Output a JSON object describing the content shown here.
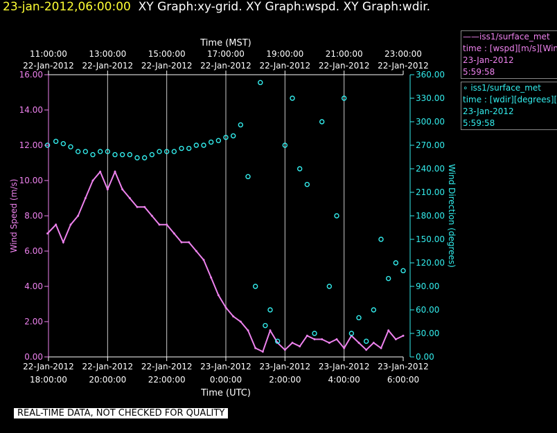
{
  "header": {
    "timestamp": "23-jan-2012,06:00:00",
    "graphs": "XY Graph:xy-grid.  XY Graph:wspd.  XY Graph:wdir."
  },
  "legend": {
    "wspd": {
      "line1": "——iss1/surface_met",
      "line2": "time : [wspd][m/s][Wind",
      "line3": "23-Jan-2012",
      "line4": "5:59:58"
    },
    "wdir": {
      "line1": "∘ iss1/surface_met",
      "line2": "time : [wdir][degrees][W",
      "line3": "23-Jan-2012",
      "line4": "5:59:58"
    }
  },
  "disclaimer": "REAL-TIME DATA, NOT CHECKED FOR QUALITY",
  "chart_data": {
    "type": "line",
    "colors": {
      "wspd": "#ee82ee",
      "wdir": "#33eeee",
      "axes": "#ffffff",
      "grid": "#ffffff"
    },
    "top_axis": {
      "label": "Time (MST)",
      "ticks": [
        {
          "t": "11:00:00",
          "d": "22-Jan-2012"
        },
        {
          "t": "13:00:00",
          "d": "22-Jan-2012"
        },
        {
          "t": "15:00:00",
          "d": "22-Jan-2012"
        },
        {
          "t": "17:00:00",
          "d": "22-Jan-2012"
        },
        {
          "t": "19:00:00",
          "d": "22-Jan-2012"
        },
        {
          "t": "21:00:00",
          "d": "22-Jan-2012"
        },
        {
          "t": "23:00:00",
          "d": "22-Jan-2012"
        }
      ]
    },
    "bottom_axis": {
      "label": "Time (UTC)",
      "ticks": [
        {
          "d": "22-Jan-2012",
          "t": "18:00:00"
        },
        {
          "d": "22-Jan-2012",
          "t": "20:00:00"
        },
        {
          "d": "22-Jan-2012",
          "t": "22:00:00"
        },
        {
          "d": "23-Jan-2012",
          "t": "0:00:00"
        },
        {
          "d": "23-Jan-2012",
          "t": "2:00:00"
        },
        {
          "d": "23-Jan-2012",
          "t": "4:00:00"
        },
        {
          "d": "23-Jan-2012",
          "t": "6:00:00"
        }
      ]
    },
    "xlim_utc": [
      "2012-01-22 18:00",
      "2012-01-23 06:00"
    ],
    "left_axis": {
      "label": "Wind Speed (m/s)",
      "ylim": [
        0,
        16
      ],
      "ticks": [
        "0.00",
        "2.00",
        "4.00",
        "6.00",
        "8.00",
        "10.00",
        "12.00",
        "14.00",
        "16.00"
      ]
    },
    "right_axis": {
      "label": "Wind Direction (degrees)",
      "ylim": [
        0,
        360
      ],
      "ticks": [
        "0.00",
        "30.00",
        "60.00",
        "90.00",
        "120.00",
        "150.00",
        "180.00",
        "210.00",
        "240.00",
        "270.00",
        "300.00",
        "330.00",
        "360.00"
      ]
    },
    "grid": "vertical",
    "series": [
      {
        "name": "iss1/surface_met wspd",
        "type": "line",
        "axis": "left",
        "points": [
          [
            "2012-01-22 17:58",
            7.0
          ],
          [
            "2012-01-22 18:15",
            7.5
          ],
          [
            "2012-01-22 18:30",
            6.5
          ],
          [
            "2012-01-22 18:45",
            7.5
          ],
          [
            "2012-01-22 19:00",
            8.0
          ],
          [
            "2012-01-22 19:15",
            9.0
          ],
          [
            "2012-01-22 19:30",
            10.0
          ],
          [
            "2012-01-22 19:45",
            10.5
          ],
          [
            "2012-01-22 20:00",
            9.5
          ],
          [
            "2012-01-22 20:15",
            10.5
          ],
          [
            "2012-01-22 20:30",
            9.5
          ],
          [
            "2012-01-22 20:45",
            9.0
          ],
          [
            "2012-01-22 21:00",
            8.5
          ],
          [
            "2012-01-22 21:15",
            8.5
          ],
          [
            "2012-01-22 21:30",
            8.0
          ],
          [
            "2012-01-22 21:45",
            7.5
          ],
          [
            "2012-01-22 22:00",
            7.5
          ],
          [
            "2012-01-22 22:15",
            7.0
          ],
          [
            "2012-01-22 22:30",
            6.5
          ],
          [
            "2012-01-22 22:45",
            6.5
          ],
          [
            "2012-01-22 23:00",
            6.0
          ],
          [
            "2012-01-22 23:15",
            5.5
          ],
          [
            "2012-01-22 23:30",
            4.5
          ],
          [
            "2012-01-22 23:45",
            3.5
          ],
          [
            "2012-01-23 00:00",
            2.8
          ],
          [
            "2012-01-23 00:15",
            2.3
          ],
          [
            "2012-01-23 00:30",
            2.0
          ],
          [
            "2012-01-23 00:45",
            1.5
          ],
          [
            "2012-01-23 01:00",
            0.5
          ],
          [
            "2012-01-23 01:15",
            0.3
          ],
          [
            "2012-01-23 01:30",
            1.5
          ],
          [
            "2012-01-23 01:45",
            0.8
          ],
          [
            "2012-01-23 02:00",
            0.4
          ],
          [
            "2012-01-23 02:15",
            0.8
          ],
          [
            "2012-01-23 02:30",
            0.6
          ],
          [
            "2012-01-23 02:45",
            1.2
          ],
          [
            "2012-01-23 03:00",
            1.0
          ],
          [
            "2012-01-23 03:15",
            1.0
          ],
          [
            "2012-01-23 03:30",
            0.8
          ],
          [
            "2012-01-23 03:45",
            1.0
          ],
          [
            "2012-01-23 04:00",
            0.5
          ],
          [
            "2012-01-23 04:15",
            1.2
          ],
          [
            "2012-01-23 04:30",
            0.8
          ],
          [
            "2012-01-23 04:45",
            0.4
          ],
          [
            "2012-01-23 05:00",
            0.8
          ],
          [
            "2012-01-23 05:15",
            0.5
          ],
          [
            "2012-01-23 05:30",
            1.5
          ],
          [
            "2012-01-23 05:45",
            1.0
          ],
          [
            "2012-01-23 06:00",
            1.2
          ]
        ]
      },
      {
        "name": "iss1/surface_met wdir",
        "type": "scatter",
        "axis": "right",
        "points": [
          [
            "2012-01-22 17:58",
            270
          ],
          [
            "2012-01-22 18:15",
            275
          ],
          [
            "2012-01-22 18:30",
            272
          ],
          [
            "2012-01-22 18:45",
            268
          ],
          [
            "2012-01-22 19:00",
            262
          ],
          [
            "2012-01-22 19:15",
            262
          ],
          [
            "2012-01-22 19:30",
            258
          ],
          [
            "2012-01-22 19:45",
            262
          ],
          [
            "2012-01-22 20:00",
            262
          ],
          [
            "2012-01-22 20:15",
            258
          ],
          [
            "2012-01-22 20:30",
            258
          ],
          [
            "2012-01-22 20:45",
            258
          ],
          [
            "2012-01-22 21:00",
            254
          ],
          [
            "2012-01-22 21:15",
            254
          ],
          [
            "2012-01-22 21:30",
            258
          ],
          [
            "2012-01-22 21:45",
            262
          ],
          [
            "2012-01-22 22:00",
            262
          ],
          [
            "2012-01-22 22:15",
            262
          ],
          [
            "2012-01-22 22:30",
            266
          ],
          [
            "2012-01-22 22:45",
            266
          ],
          [
            "2012-01-22 23:00",
            270
          ],
          [
            "2012-01-22 23:15",
            270
          ],
          [
            "2012-01-22 23:30",
            274
          ],
          [
            "2012-01-22 23:45",
            276
          ],
          [
            "2012-01-23 00:00",
            280
          ],
          [
            "2012-01-23 00:15",
            282
          ],
          [
            "2012-01-23 00:30",
            296
          ],
          [
            "2012-01-23 00:45",
            230
          ],
          [
            "2012-01-23 01:00",
            90
          ],
          [
            "2012-01-23 01:10",
            350
          ],
          [
            "2012-01-23 01:20",
            40
          ],
          [
            "2012-01-23 01:30",
            60
          ],
          [
            "2012-01-23 01:45",
            20
          ],
          [
            "2012-01-23 02:00",
            270
          ],
          [
            "2012-01-23 02:15",
            330
          ],
          [
            "2012-01-23 02:30",
            240
          ],
          [
            "2012-01-23 02:45",
            220
          ],
          [
            "2012-01-23 03:00",
            30
          ],
          [
            "2012-01-23 03:15",
            300
          ],
          [
            "2012-01-23 03:30",
            90
          ],
          [
            "2012-01-23 03:45",
            180
          ],
          [
            "2012-01-23 04:00",
            330
          ],
          [
            "2012-01-23 04:15",
            30
          ],
          [
            "2012-01-23 04:30",
            50
          ],
          [
            "2012-01-23 04:45",
            20
          ],
          [
            "2012-01-23 05:00",
            60
          ],
          [
            "2012-01-23 05:15",
            150
          ],
          [
            "2012-01-23 05:30",
            100
          ],
          [
            "2012-01-23 05:45",
            120
          ],
          [
            "2012-01-23 06:00",
            110
          ]
        ]
      }
    ]
  }
}
